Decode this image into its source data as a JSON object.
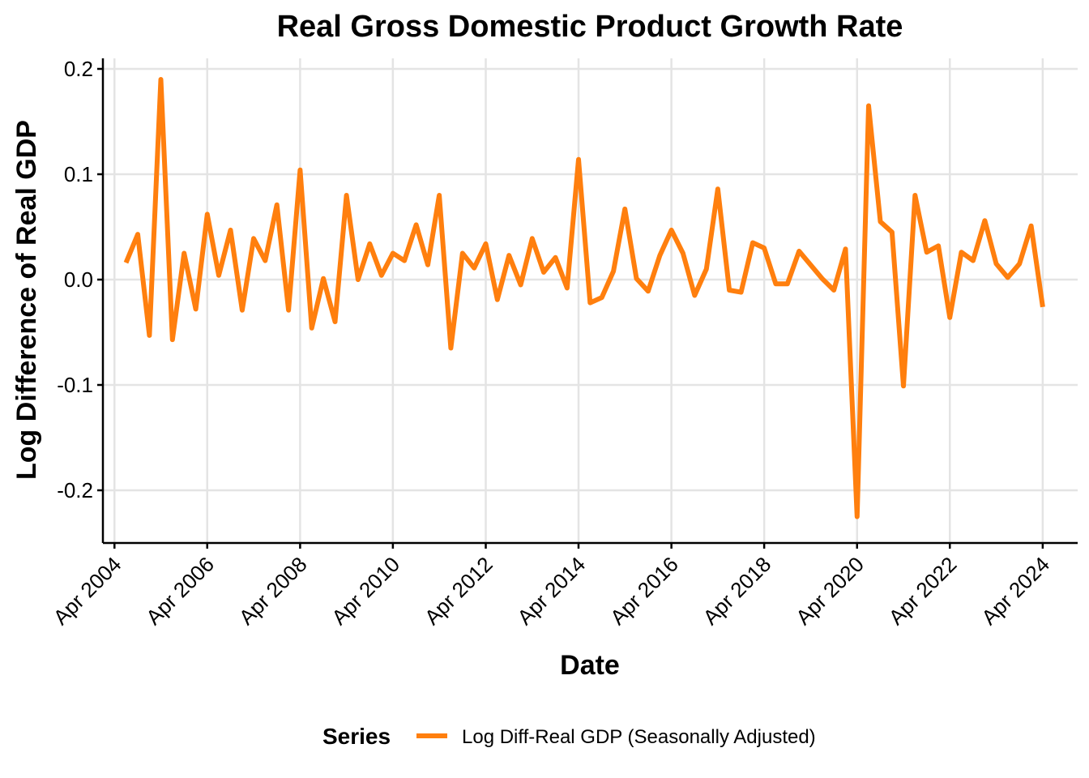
{
  "chart_data": {
    "type": "line",
    "title": "Real Gross Domestic Product Growth Rate",
    "xlabel": "Date",
    "ylabel": "Log Difference of Real GDP",
    "ylim": [
      -0.25,
      0.21
    ],
    "xlim": [
      "2004-01-01",
      "2025-01-01"
    ],
    "yticks": [
      -0.2,
      -0.1,
      0.0,
      0.1,
      0.2
    ],
    "ytick_labels": [
      "-0.2",
      "-0.1",
      "0.0",
      "0.1",
      "0.2"
    ],
    "xticks": [
      "2004-04-01",
      "2006-04-01",
      "2008-04-01",
      "2010-04-01",
      "2012-04-01",
      "2014-04-01",
      "2016-04-01",
      "2018-04-01",
      "2020-04-01",
      "2022-04-01",
      "2024-04-01"
    ],
    "xtick_labels": [
      "Apr 2004",
      "Apr 2006",
      "Apr 2008",
      "Apr 2010",
      "Apr 2012",
      "Apr 2014",
      "Apr 2016",
      "Apr 2018",
      "Apr 2020",
      "Apr 2022",
      "Apr 2024"
    ],
    "grid": true,
    "legend_position": "bottom",
    "legend_title": "Series",
    "series": [
      {
        "name": "Log Diff-Real GDP (Seasonally Adjusted)",
        "color": "#FF7F0E",
        "x": [
          "2004-07-01",
          "2004-10-01",
          "2005-01-01",
          "2005-04-01",
          "2005-07-01",
          "2005-10-01",
          "2006-01-01",
          "2006-04-01",
          "2006-07-01",
          "2006-10-01",
          "2007-01-01",
          "2007-04-01",
          "2007-07-01",
          "2007-10-01",
          "2008-01-01",
          "2008-04-01",
          "2008-07-01",
          "2008-10-01",
          "2009-01-01",
          "2009-04-01",
          "2009-07-01",
          "2009-10-01",
          "2010-01-01",
          "2010-04-01",
          "2010-07-01",
          "2010-10-01",
          "2011-01-01",
          "2011-04-01",
          "2011-07-01",
          "2011-10-01",
          "2012-01-01",
          "2012-04-01",
          "2012-07-01",
          "2012-10-01",
          "2013-01-01",
          "2013-04-01",
          "2013-07-01",
          "2013-10-01",
          "2014-01-01",
          "2014-04-01",
          "2014-07-01",
          "2014-10-01",
          "2015-01-01",
          "2015-04-01",
          "2015-07-01",
          "2015-10-01",
          "2016-01-01",
          "2016-04-01",
          "2016-07-01",
          "2016-10-01",
          "2017-01-01",
          "2017-04-01",
          "2017-07-01",
          "2017-10-01",
          "2018-01-01",
          "2018-04-01",
          "2018-07-01",
          "2018-10-01",
          "2019-01-01",
          "2019-04-01",
          "2019-07-01",
          "2019-10-01",
          "2020-01-01",
          "2020-04-01",
          "2020-07-01",
          "2020-10-01",
          "2021-01-01",
          "2021-04-01",
          "2021-07-01",
          "2021-10-01",
          "2022-01-01",
          "2022-04-01",
          "2022-07-01",
          "2022-10-01",
          "2023-01-01",
          "2023-04-01",
          "2023-07-01",
          "2023-10-01",
          "2024-01-01",
          "2024-04-01"
        ],
        "y": [
          0.016,
          0.043,
          -0.053,
          0.19,
          -0.057,
          0.025,
          -0.028,
          0.062,
          0.004,
          0.047,
          -0.029,
          0.039,
          0.018,
          0.071,
          -0.029,
          0.104,
          -0.046,
          0.001,
          -0.04,
          0.08,
          0.0,
          0.034,
          0.004,
          0.025,
          0.018,
          0.052,
          0.014,
          0.08,
          -0.065,
          0.025,
          0.011,
          0.034,
          -0.019,
          0.023,
          -0.005,
          0.039,
          0.007,
          0.021,
          -0.008,
          0.114,
          -0.022,
          -0.017,
          0.008,
          0.067,
          0.001,
          -0.011,
          0.023,
          0.047,
          0.025,
          -0.015,
          0.01,
          0.086,
          -0.01,
          -0.012,
          0.035,
          0.03,
          -0.004,
          -0.004,
          0.027,
          0.014,
          0.001,
          -0.01,
          0.029,
          -0.225,
          0.165,
          0.055,
          0.045,
          -0.101,
          0.08,
          0.026,
          0.032,
          -0.036,
          0.026,
          0.018,
          0.056,
          0.015,
          0.002,
          0.015,
          0.051,
          -0.026
        ]
      }
    ]
  }
}
